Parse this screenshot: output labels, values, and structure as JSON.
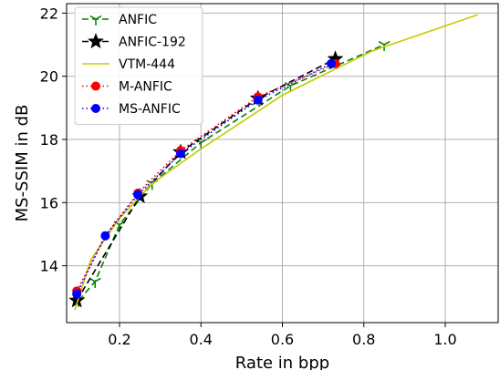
{
  "chart_data": {
    "type": "line",
    "xlabel": "Rate in bpp",
    "ylabel": "MS-SSIM in dB",
    "xlim": [
      0.07,
      1.13
    ],
    "ylim": [
      12.2,
      22.3
    ],
    "xticks": [
      0.2,
      0.4,
      0.6,
      0.8,
      1.0
    ],
    "xtick_labels": [
      "0.2",
      "0.4",
      "0.6",
      "0.8",
      "1.0"
    ],
    "yticks": [
      14,
      16,
      18,
      20,
      22
    ],
    "ytick_labels": [
      "14",
      "16",
      "18",
      "20",
      "22"
    ],
    "grid": true,
    "legend_position": "top-left",
    "series": [
      {
        "name": "ANFIC",
        "color": "#008000",
        "line_style": "dashed",
        "marker": "tri-down",
        "x": [
          0.1,
          0.14,
          0.2,
          0.28,
          0.4,
          0.62,
          0.85
        ],
        "y": [
          12.9,
          13.5,
          15.3,
          16.6,
          17.9,
          19.7,
          21.0
        ]
      },
      {
        "name": "ANFIC-192",
        "color": "#000000",
        "line_style": "dashed",
        "marker": "star",
        "x": [
          0.095,
          0.25,
          0.35,
          0.54,
          0.73
        ],
        "y": [
          12.9,
          16.2,
          17.6,
          19.3,
          20.55
        ]
      },
      {
        "name": "VTM-444",
        "color": "#c8c800",
        "line_style": "solid",
        "marker": "none",
        "x": [
          0.09,
          0.13,
          0.2,
          0.28,
          0.4,
          0.6,
          0.82,
          1.08
        ],
        "y": [
          12.6,
          14.2,
          15.5,
          16.6,
          17.7,
          19.4,
          20.8,
          21.95
        ]
      },
      {
        "name": "M-ANFIC",
        "color": "#ff0000",
        "line_style": "dotted",
        "marker": "circle",
        "x": [
          0.095,
          0.165,
          0.245,
          0.35,
          0.54,
          0.73
        ],
        "y": [
          13.2,
          14.95,
          16.3,
          17.65,
          19.35,
          20.4
        ]
      },
      {
        "name": "MS-ANFIC",
        "color": "#0000ff",
        "line_style": "dotted",
        "marker": "circle",
        "x": [
          0.095,
          0.165,
          0.245,
          0.35,
          0.54,
          0.72
        ],
        "y": [
          13.1,
          14.95,
          16.25,
          17.55,
          19.25,
          20.4
        ]
      }
    ]
  }
}
